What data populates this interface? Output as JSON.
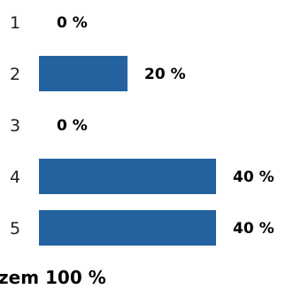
{
  "chart_data": {
    "type": "bar",
    "orientation": "horizontal",
    "categories": [
      "1",
      "2",
      "3",
      "4",
      "5"
    ],
    "values": [
      0,
      20,
      0,
      40,
      40
    ],
    "value_labels": [
      "0 %",
      "20 %",
      "0 %",
      "40 %",
      "40 %"
    ],
    "xlim": [
      0,
      40
    ],
    "grid": false,
    "bar_color": "#2563a0",
    "total_label": "zem 100 %"
  }
}
